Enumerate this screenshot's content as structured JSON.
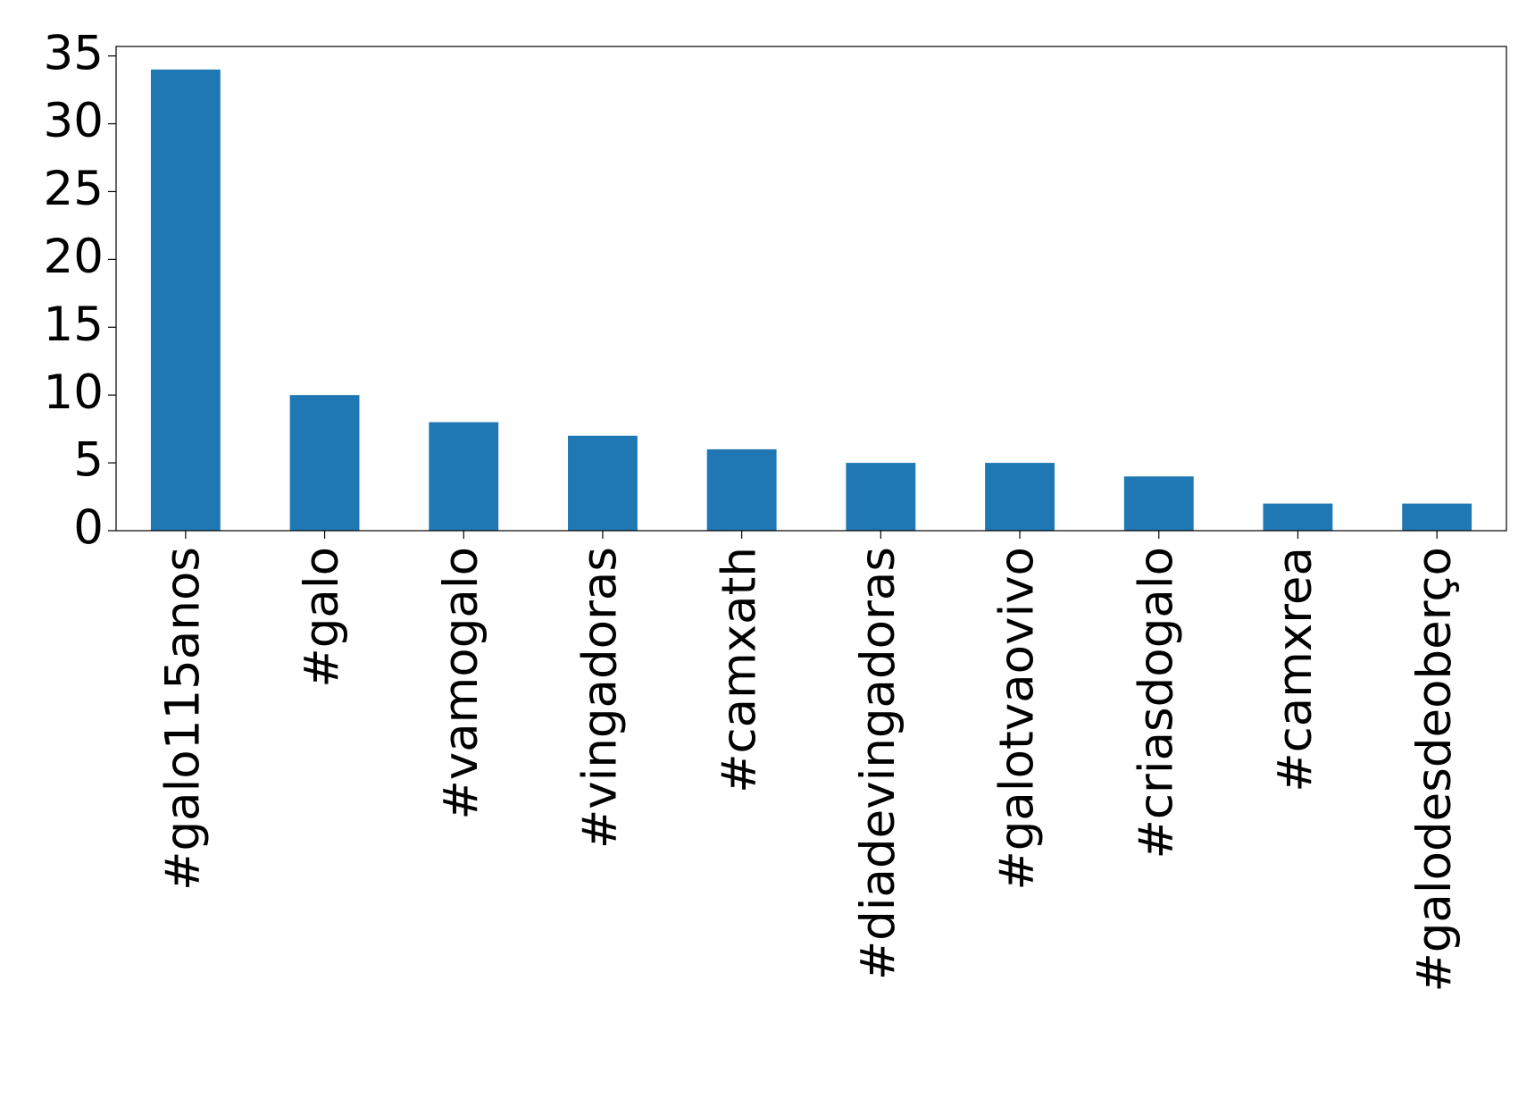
{
  "chart_data": {
    "type": "bar",
    "categories": [
      "#galo115anos",
      "#galo",
      "#vamogalo",
      "#vingadoras",
      "#camxath",
      "#diadevingadoras",
      "#galotvaovivo",
      "#criasdogalo",
      "#camxrea",
      "#galodesdeoberço"
    ],
    "values": [
      34,
      10,
      8,
      7,
      6,
      5,
      5,
      4,
      2,
      2
    ],
    "color": "#1f77b4",
    "ylim": [
      0,
      35.7
    ],
    "yticks": [
      0,
      5,
      10,
      15,
      20,
      25,
      30,
      35
    ],
    "grid": false
  }
}
